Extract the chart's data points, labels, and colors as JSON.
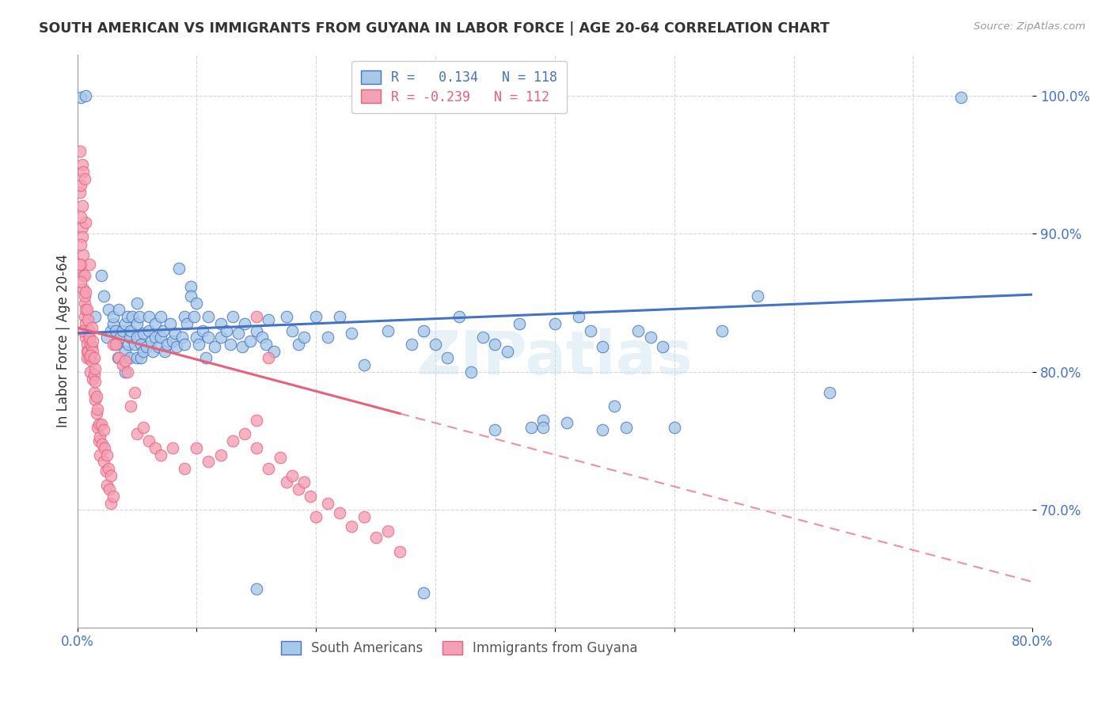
{
  "title": "SOUTH AMERICAN VS IMMIGRANTS FROM GUYANA IN LABOR FORCE | AGE 20-64 CORRELATION CHART",
  "source": "Source: ZipAtlas.com",
  "ylabel": "In Labor Force | Age 20-64",
  "xlim": [
    0.0,
    0.8
  ],
  "ylim": [
    0.615,
    1.03
  ],
  "yticks": [
    0.7,
    0.8,
    0.9,
    1.0
  ],
  "ytick_labels": [
    "70.0%",
    "80.0%",
    "90.0%",
    "100.0%"
  ],
  "xticks": [
    0.0,
    0.1,
    0.2,
    0.3,
    0.4,
    0.5,
    0.6,
    0.7,
    0.8
  ],
  "xtick_labels": [
    "0.0%",
    "",
    "",
    "",
    "",
    "",
    "",
    "",
    "80.0%"
  ],
  "blue_R": 0.134,
  "blue_N": 118,
  "pink_R": -0.239,
  "pink_N": 112,
  "blue_color": "#a8c8e8",
  "pink_color": "#f4a0b5",
  "blue_line_color": "#4472c4",
  "pink_line_color": "#e8607a",
  "legend_label_blue": "South Americans",
  "legend_label_pink": "Immigrants from Guyana",
  "watermark": "ZIPatlas",
  "blue_trend": [
    0.828,
    0.856
  ],
  "pink_trend_solid_end_x": 0.27,
  "pink_trend": [
    0.832,
    0.648
  ],
  "blue_scatter": [
    [
      0.003,
      0.999
    ],
    [
      0.007,
      1.0
    ],
    [
      0.015,
      0.84
    ],
    [
      0.02,
      0.87
    ],
    [
      0.022,
      0.855
    ],
    [
      0.025,
      0.825
    ],
    [
      0.026,
      0.845
    ],
    [
      0.028,
      0.83
    ],
    [
      0.03,
      0.835
    ],
    [
      0.03,
      0.84
    ],
    [
      0.032,
      0.83
    ],
    [
      0.033,
      0.82
    ],
    [
      0.034,
      0.81
    ],
    [
      0.035,
      0.845
    ],
    [
      0.036,
      0.825
    ],
    [
      0.038,
      0.83
    ],
    [
      0.04,
      0.8
    ],
    [
      0.04,
      0.815
    ],
    [
      0.04,
      0.835
    ],
    [
      0.042,
      0.84
    ],
    [
      0.043,
      0.82
    ],
    [
      0.044,
      0.825
    ],
    [
      0.044,
      0.81
    ],
    [
      0.045,
      0.83
    ],
    [
      0.046,
      0.84
    ],
    [
      0.048,
      0.82
    ],
    [
      0.05,
      0.81
    ],
    [
      0.05,
      0.825
    ],
    [
      0.05,
      0.835
    ],
    [
      0.05,
      0.85
    ],
    [
      0.052,
      0.84
    ],
    [
      0.053,
      0.82
    ],
    [
      0.053,
      0.81
    ],
    [
      0.055,
      0.828
    ],
    [
      0.055,
      0.815
    ],
    [
      0.058,
      0.818
    ],
    [
      0.06,
      0.83
    ],
    [
      0.06,
      0.84
    ],
    [
      0.062,
      0.822
    ],
    [
      0.063,
      0.815
    ],
    [
      0.065,
      0.825
    ],
    [
      0.065,
      0.835
    ],
    [
      0.068,
      0.818
    ],
    [
      0.07,
      0.825
    ],
    [
      0.07,
      0.84
    ],
    [
      0.072,
      0.83
    ],
    [
      0.073,
      0.815
    ],
    [
      0.075,
      0.82
    ],
    [
      0.078,
      0.835
    ],
    [
      0.08,
      0.822
    ],
    [
      0.082,
      0.828
    ],
    [
      0.083,
      0.818
    ],
    [
      0.085,
      0.875
    ],
    [
      0.088,
      0.825
    ],
    [
      0.09,
      0.84
    ],
    [
      0.09,
      0.82
    ],
    [
      0.092,
      0.835
    ],
    [
      0.095,
      0.862
    ],
    [
      0.095,
      0.855
    ],
    [
      0.098,
      0.84
    ],
    [
      0.1,
      0.85
    ],
    [
      0.1,
      0.825
    ],
    [
      0.102,
      0.82
    ],
    [
      0.105,
      0.83
    ],
    [
      0.108,
      0.81
    ],
    [
      0.11,
      0.825
    ],
    [
      0.11,
      0.84
    ],
    [
      0.115,
      0.818
    ],
    [
      0.12,
      0.835
    ],
    [
      0.12,
      0.825
    ],
    [
      0.125,
      0.83
    ],
    [
      0.128,
      0.82
    ],
    [
      0.13,
      0.84
    ],
    [
      0.135,
      0.828
    ],
    [
      0.138,
      0.818
    ],
    [
      0.14,
      0.835
    ],
    [
      0.145,
      0.822
    ],
    [
      0.15,
      0.83
    ],
    [
      0.155,
      0.825
    ],
    [
      0.158,
      0.82
    ],
    [
      0.16,
      0.838
    ],
    [
      0.165,
      0.815
    ],
    [
      0.175,
      0.84
    ],
    [
      0.18,
      0.83
    ],
    [
      0.185,
      0.82
    ],
    [
      0.19,
      0.825
    ],
    [
      0.2,
      0.84
    ],
    [
      0.21,
      0.825
    ],
    [
      0.22,
      0.84
    ],
    [
      0.23,
      0.828
    ],
    [
      0.24,
      0.805
    ],
    [
      0.26,
      0.83
    ],
    [
      0.28,
      0.82
    ],
    [
      0.29,
      0.83
    ],
    [
      0.3,
      0.82
    ],
    [
      0.31,
      0.81
    ],
    [
      0.32,
      0.84
    ],
    [
      0.33,
      0.8
    ],
    [
      0.34,
      0.825
    ],
    [
      0.35,
      0.82
    ],
    [
      0.36,
      0.815
    ],
    [
      0.37,
      0.835
    ],
    [
      0.38,
      0.76
    ],
    [
      0.39,
      0.765
    ],
    [
      0.4,
      0.835
    ],
    [
      0.41,
      0.763
    ],
    [
      0.42,
      0.84
    ],
    [
      0.43,
      0.83
    ],
    [
      0.44,
      0.818
    ],
    [
      0.45,
      0.775
    ],
    [
      0.46,
      0.76
    ],
    [
      0.47,
      0.83
    ],
    [
      0.48,
      0.825
    ],
    [
      0.49,
      0.818
    ],
    [
      0.35,
      0.758
    ],
    [
      0.39,
      0.76
    ],
    [
      0.44,
      0.758
    ],
    [
      0.5,
      0.76
    ],
    [
      0.54,
      0.83
    ],
    [
      0.57,
      0.855
    ],
    [
      0.63,
      0.785
    ],
    [
      0.74,
      0.999
    ],
    [
      0.29,
      0.64
    ],
    [
      0.15,
      0.643
    ]
  ],
  "pink_scatter": [
    [
      0.002,
      0.93
    ],
    [
      0.003,
      0.935
    ],
    [
      0.003,
      0.878
    ],
    [
      0.004,
      0.92
    ],
    [
      0.004,
      0.905
    ],
    [
      0.004,
      0.95
    ],
    [
      0.004,
      0.898
    ],
    [
      0.005,
      0.885
    ],
    [
      0.005,
      0.87
    ],
    [
      0.005,
      0.86
    ],
    [
      0.005,
      0.945
    ],
    [
      0.006,
      0.85
    ],
    [
      0.006,
      0.84
    ],
    [
      0.006,
      0.855
    ],
    [
      0.006,
      0.94
    ],
    [
      0.007,
      0.845
    ],
    [
      0.007,
      0.825
    ],
    [
      0.007,
      0.835
    ],
    [
      0.007,
      0.908
    ],
    [
      0.008,
      0.82
    ],
    [
      0.008,
      0.815
    ],
    [
      0.008,
      0.81
    ],
    [
      0.009,
      0.828
    ],
    [
      0.009,
      0.815
    ],
    [
      0.009,
      0.83
    ],
    [
      0.01,
      0.83
    ],
    [
      0.01,
      0.81
    ],
    [
      0.01,
      0.878
    ],
    [
      0.011,
      0.82
    ],
    [
      0.011,
      0.8
    ],
    [
      0.012,
      0.818
    ],
    [
      0.012,
      0.808
    ],
    [
      0.013,
      0.815
    ],
    [
      0.013,
      0.795
    ],
    [
      0.014,
      0.785
    ],
    [
      0.014,
      0.798
    ],
    [
      0.015,
      0.78
    ],
    [
      0.015,
      0.793
    ],
    [
      0.016,
      0.77
    ],
    [
      0.016,
      0.782
    ],
    [
      0.017,
      0.76
    ],
    [
      0.017,
      0.773
    ],
    [
      0.018,
      0.75
    ],
    [
      0.018,
      0.762
    ],
    [
      0.019,
      0.74
    ],
    [
      0.019,
      0.753
    ],
    [
      0.02,
      0.762
    ],
    [
      0.021,
      0.748
    ],
    [
      0.022,
      0.758
    ],
    [
      0.022,
      0.735
    ],
    [
      0.003,
      0.912
    ],
    [
      0.002,
      0.96
    ],
    [
      0.003,
      0.892
    ],
    [
      0.023,
      0.745
    ],
    [
      0.024,
      0.728
    ],
    [
      0.025,
      0.74
    ],
    [
      0.025,
      0.718
    ],
    [
      0.026,
      0.73
    ],
    [
      0.027,
      0.715
    ],
    [
      0.028,
      0.725
    ],
    [
      0.028,
      0.705
    ],
    [
      0.03,
      0.82
    ],
    [
      0.03,
      0.71
    ],
    [
      0.032,
      0.82
    ],
    [
      0.035,
      0.81
    ],
    [
      0.038,
      0.805
    ],
    [
      0.04,
      0.808
    ],
    [
      0.042,
      0.8
    ],
    [
      0.045,
      0.775
    ],
    [
      0.048,
      0.785
    ],
    [
      0.05,
      0.755
    ],
    [
      0.055,
      0.76
    ],
    [
      0.06,
      0.75
    ],
    [
      0.065,
      0.745
    ],
    [
      0.07,
      0.74
    ],
    [
      0.08,
      0.745
    ],
    [
      0.09,
      0.73
    ],
    [
      0.1,
      0.745
    ],
    [
      0.11,
      0.735
    ],
    [
      0.12,
      0.74
    ],
    [
      0.13,
      0.75
    ],
    [
      0.14,
      0.755
    ],
    [
      0.15,
      0.765
    ],
    [
      0.15,
      0.745
    ],
    [
      0.15,
      0.84
    ],
    [
      0.16,
      0.73
    ],
    [
      0.16,
      0.81
    ],
    [
      0.17,
      0.738
    ],
    [
      0.175,
      0.72
    ],
    [
      0.18,
      0.725
    ],
    [
      0.185,
      0.715
    ],
    [
      0.19,
      0.72
    ],
    [
      0.195,
      0.71
    ],
    [
      0.2,
      0.695
    ],
    [
      0.21,
      0.705
    ],
    [
      0.22,
      0.698
    ],
    [
      0.23,
      0.688
    ],
    [
      0.24,
      0.695
    ],
    [
      0.25,
      0.68
    ],
    [
      0.26,
      0.685
    ],
    [
      0.27,
      0.67
    ],
    [
      0.005,
      0.83
    ],
    [
      0.006,
      0.87
    ],
    [
      0.007,
      0.858
    ],
    [
      0.008,
      0.845
    ],
    [
      0.009,
      0.838
    ],
    [
      0.01,
      0.825
    ],
    [
      0.011,
      0.812
    ],
    [
      0.012,
      0.832
    ],
    [
      0.013,
      0.822
    ],
    [
      0.014,
      0.81
    ],
    [
      0.015,
      0.802
    ],
    [
      0.002,
      0.878
    ],
    [
      0.003,
      0.865
    ]
  ]
}
